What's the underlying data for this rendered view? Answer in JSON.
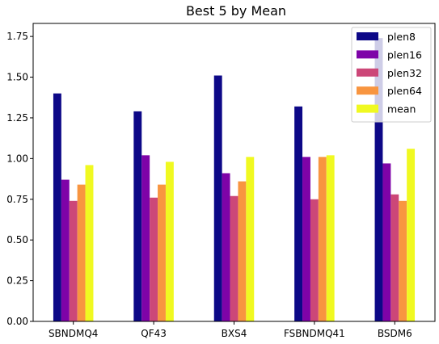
{
  "chart_data": {
    "type": "bar",
    "title": "Best 5 by Mean",
    "xlabel": "",
    "ylabel": "",
    "categories": [
      "SBNDMQ4",
      "QF43",
      "BXS4",
      "FSBNDMQ41",
      "BSDM6"
    ],
    "series": [
      {
        "name": "plen8",
        "color": "#0d0887",
        "values": [
          1.4,
          1.29,
          1.51,
          1.32,
          1.74
        ]
      },
      {
        "name": "plen16",
        "color": "#7e03a8",
        "values": [
          0.87,
          1.02,
          0.91,
          1.01,
          0.97
        ]
      },
      {
        "name": "plen32",
        "color": "#cc4778",
        "values": [
          0.74,
          0.76,
          0.77,
          0.75,
          0.78
        ]
      },
      {
        "name": "plen64",
        "color": "#f89540",
        "values": [
          0.84,
          0.84,
          0.86,
          1.01,
          0.74
        ]
      },
      {
        "name": "mean",
        "color": "#f0f921",
        "values": [
          0.96,
          0.98,
          1.01,
          1.02,
          1.06
        ]
      }
    ],
    "ylim": [
      0,
      1.83
    ],
    "yticks": [
      "0.00",
      "0.25",
      "0.50",
      "0.75",
      "1.00",
      "1.25",
      "1.50",
      "1.75"
    ],
    "grid": false,
    "legend": "top-right"
  }
}
